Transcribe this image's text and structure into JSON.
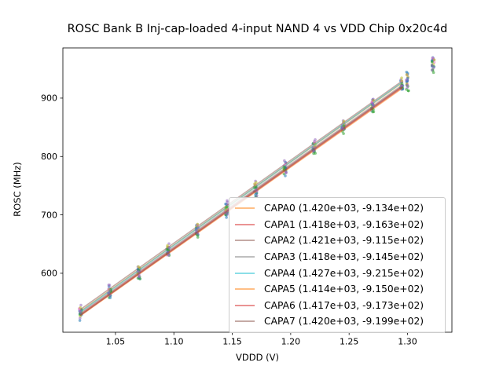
{
  "chart_data": {
    "type": "scatter",
    "title": "ROSC Bank B Inj-cap-loaded 4-input NAND 4 vs VDD Chip 0x20c4d",
    "xlabel": "VDDD (V)",
    "ylabel": "ROSC (MHz)",
    "xlim": [
      1.005,
      1.338
    ],
    "ylim": [
      499,
      986
    ],
    "grid": false,
    "legend_position": "inside lower-right",
    "xticks": [
      1.05,
      1.1,
      1.15,
      1.2,
      1.25,
      1.3
    ],
    "xtick_labels": [
      "1.05",
      "1.10",
      "1.15",
      "1.20",
      "1.25",
      "1.30"
    ],
    "yticks": [
      600,
      700,
      800,
      900
    ],
    "ytick_labels": [
      "600",
      "700",
      "800",
      "900"
    ],
    "scatter_x": [
      1.02,
      1.045,
      1.07,
      1.095,
      1.12,
      1.145,
      1.17,
      1.195,
      1.22,
      1.245,
      1.27,
      1.295,
      1.3,
      1.322
    ],
    "fit_line_range": [
      1.02,
      1.2957
    ],
    "points_per_cluster": 3,
    "scatter_y_jitter_mhz": 9,
    "series": [
      {
        "name": "CAPA0",
        "legend_label": "CAPA0 (1.420e+03, -9.134e+02)",
        "fit_slope": 1420,
        "fit_intercept": -913.4,
        "line_color": "#ff7f0e",
        "scatter_color": "#1f77b4"
      },
      {
        "name": "CAPA1",
        "legend_label": "CAPA1 (1.418e+03, -9.163e+02)",
        "fit_slope": 1418,
        "fit_intercept": -916.3,
        "line_color": "#d62728",
        "scatter_color": "#2ca02c"
      },
      {
        "name": "CAPA2",
        "legend_label": "CAPA2 (1.421e+03, -9.115e+02)",
        "fit_slope": 1421,
        "fit_intercept": -911.5,
        "line_color": "#8c564b",
        "scatter_color": "#9467bd"
      },
      {
        "name": "CAPA3",
        "legend_label": "CAPA3 (1.418e+03, -9.145e+02)",
        "fit_slope": 1418,
        "fit_intercept": -914.5,
        "line_color": "#7f7f7f",
        "scatter_color": "#e377c2"
      },
      {
        "name": "CAPA4",
        "legend_label": "CAPA4 (1.427e+03, -9.215e+02)",
        "fit_slope": 1427,
        "fit_intercept": -921.5,
        "line_color": "#17becf",
        "scatter_color": "#bcbd22"
      },
      {
        "name": "CAPA5",
        "legend_label": "CAPA5 (1.414e+03, -9.150e+02)",
        "fit_slope": 1414,
        "fit_intercept": -915.0,
        "line_color": "#ff7f0e",
        "scatter_color": "#1f77b4"
      },
      {
        "name": "CAPA6",
        "legend_label": "CAPA6 (1.417e+03, -9.173e+02)",
        "fit_slope": 1417,
        "fit_intercept": -917.3,
        "line_color": "#d62728",
        "scatter_color": "#2ca02c"
      },
      {
        "name": "CAPA7",
        "legend_label": "CAPA7 (1.420e+03, -9.199e+02)",
        "fit_slope": 1420,
        "fit_intercept": -919.9,
        "line_color": "#8c564b",
        "scatter_color": "#9467bd"
      }
    ],
    "line_alpha": 0.5,
    "scatter_alpha": 0.55,
    "axis_color": "#000000"
  }
}
